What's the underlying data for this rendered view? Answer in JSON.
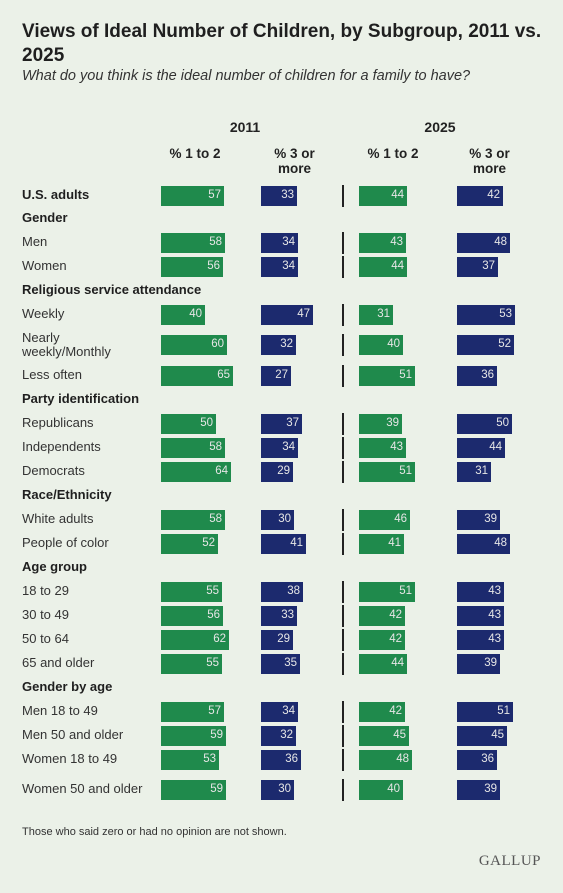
{
  "header": {
    "title": "Views of Ideal Number of Children, by Subgroup, 2011 vs. 2025",
    "subtitle": "What do you think is the ideal number of children for a family to have?"
  },
  "footnote": "Those who said zero or had no opinion are not shown.",
  "brand": "GALLUP",
  "colors": {
    "green": "#1f8a4c",
    "navy": "#1c2a6e",
    "background": "#ebf1e8"
  },
  "chart_data": {
    "type": "bar",
    "years": [
      "2011",
      "2025"
    ],
    "column_labels": [
      "% 1 to 2",
      "% 3 or more"
    ],
    "rows": [
      {
        "label": "U.S. adults",
        "header": true,
        "values": [
          57,
          33,
          44,
          42
        ]
      },
      {
        "label": "Gender",
        "header": true
      },
      {
        "label": "Men",
        "values": [
          58,
          34,
          43,
          48
        ]
      },
      {
        "label": "Women",
        "values": [
          56,
          34,
          44,
          37
        ]
      },
      {
        "label": "Religious service attendance",
        "header": true
      },
      {
        "label": "Weekly",
        "values": [
          40,
          47,
          31,
          53
        ]
      },
      {
        "label": "Nearly weekly/Monthly",
        "values": [
          60,
          32,
          40,
          52
        ]
      },
      {
        "label": "Less often",
        "values": [
          65,
          27,
          51,
          36
        ]
      },
      {
        "label": "Party identification",
        "header": true
      },
      {
        "label": "Republicans",
        "values": [
          50,
          37,
          39,
          50
        ]
      },
      {
        "label": "Independents",
        "values": [
          58,
          34,
          43,
          44
        ]
      },
      {
        "label": "Democrats",
        "values": [
          64,
          29,
          51,
          31
        ]
      },
      {
        "label": "Race/Ethnicity",
        "header": true
      },
      {
        "label": "White adults",
        "values": [
          58,
          30,
          46,
          39
        ]
      },
      {
        "label": "People of color",
        "values": [
          52,
          41,
          41,
          48
        ]
      },
      {
        "label": "Age group",
        "header": true
      },
      {
        "label": "18 to 29",
        "values": [
          55,
          38,
          51,
          43
        ]
      },
      {
        "label": "30 to 49",
        "values": [
          56,
          33,
          42,
          43
        ]
      },
      {
        "label": "50 to 64",
        "values": [
          62,
          29,
          42,
          43
        ]
      },
      {
        "label": "65 and older",
        "values": [
          55,
          35,
          44,
          39
        ]
      },
      {
        "label": "Gender by age",
        "header": true
      },
      {
        "label": "Men 18 to 49",
        "values": [
          57,
          34,
          42,
          51
        ]
      },
      {
        "label": "Men 50 and older",
        "values": [
          59,
          32,
          45,
          45
        ]
      },
      {
        "label": "Women 18 to 49",
        "values": [
          53,
          36,
          48,
          36
        ]
      },
      {
        "label": "Women 50 and older",
        "values": [
          59,
          30,
          40,
          39
        ]
      }
    ]
  }
}
